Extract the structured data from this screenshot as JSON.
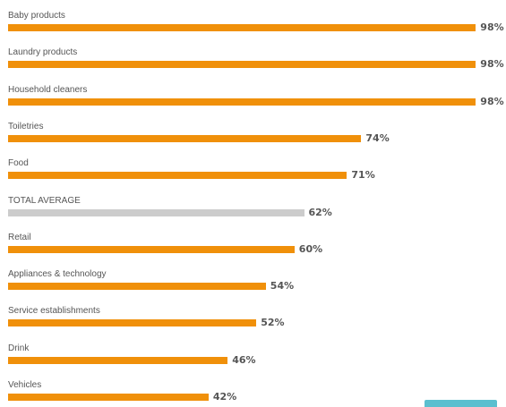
{
  "chart_data": {
    "type": "bar",
    "orientation": "horizontal",
    "categories": [
      "Baby products",
      "Laundry products",
      "Household cleaners",
      "Toiletries",
      "Food",
      "TOTAL AVERAGE",
      "Retail",
      "Appliances & technology",
      "Service establishments",
      "Drink",
      "Vehicles"
    ],
    "values": [
      98,
      98,
      98,
      74,
      71,
      62,
      60,
      54,
      52,
      46,
      42
    ],
    "value_labels": [
      "98%",
      "98%",
      "98%",
      "74%",
      "71%",
      "62%",
      "60%",
      "54%",
      "52%",
      "46%",
      "42%"
    ],
    "xlim": [
      0,
      100
    ],
    "grid": false,
    "highlight_category": "TOTAL AVERAGE"
  },
  "colors": {
    "bar": "#F0900A",
    "highlight_bar": "#CCCCCC",
    "corner_badge": "#5BBFCF"
  }
}
